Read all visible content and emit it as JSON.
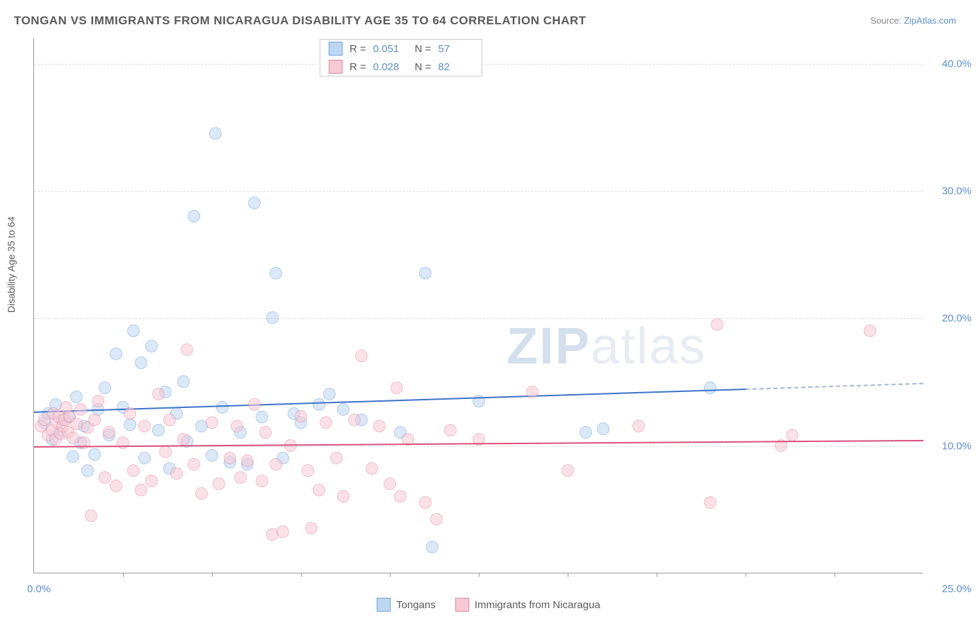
{
  "title": "TONGAN VS IMMIGRANTS FROM NICARAGUA DISABILITY AGE 35 TO 64 CORRELATION CHART",
  "source_prefix": "Source: ",
  "source_link": "ZipAtlas.com",
  "ylabel": "Disability Age 35 to 64",
  "watermark_a": "ZIP",
  "watermark_b": "atlas",
  "chart": {
    "type": "scatter",
    "xlim": [
      0,
      25
    ],
    "ylim": [
      0,
      42
    ],
    "xlim_labels": [
      "0.0%",
      "25.0%"
    ],
    "ytick_values": [
      10,
      20,
      30,
      40
    ],
    "ytick_labels": [
      "10.0%",
      "20.0%",
      "30.0%",
      "40.0%"
    ],
    "xtick_values": [
      2.5,
      5,
      7.5,
      10,
      12.5,
      15,
      17.5,
      20,
      22.5
    ],
    "background_color": "#ffffff",
    "grid_color": "#dddddd",
    "axis_color": "#999999",
    "label_color": "#5a8fd6",
    "marker_radius": 9,
    "marker_opacity": 0.55,
    "series": [
      {
        "name": "Tongans",
        "legend_label": "Tongans",
        "fill": "#bcd7f2",
        "stroke": "#6fa3db",
        "trend_color": "#3b72c8",
        "R": "0.051",
        "N": "57",
        "trend": {
          "x1": 0,
          "y1": 12.7,
          "x2": 20,
          "y2": 14.5,
          "dash_to_x": 25
        },
        "points": [
          [
            0.3,
            11.8
          ],
          [
            0.4,
            12.5
          ],
          [
            0.5,
            10.5
          ],
          [
            0.6,
            13.2
          ],
          [
            0.7,
            11.0
          ],
          [
            0.8,
            12.0
          ],
          [
            1.0,
            12.2
          ],
          [
            1.1,
            9.1
          ],
          [
            1.2,
            13.8
          ],
          [
            1.3,
            10.2
          ],
          [
            1.4,
            11.5
          ],
          [
            1.5,
            8.0
          ],
          [
            1.7,
            9.3
          ],
          [
            1.8,
            12.8
          ],
          [
            2.0,
            14.5
          ],
          [
            2.1,
            10.8
          ],
          [
            2.3,
            17.2
          ],
          [
            2.5,
            13.0
          ],
          [
            2.7,
            11.6
          ],
          [
            2.8,
            19.0
          ],
          [
            3.0,
            16.5
          ],
          [
            3.1,
            9.0
          ],
          [
            3.3,
            17.8
          ],
          [
            3.5,
            11.2
          ],
          [
            3.7,
            14.2
          ],
          [
            3.8,
            8.2
          ],
          [
            4.0,
            12.5
          ],
          [
            4.2,
            15.0
          ],
          [
            4.3,
            10.3
          ],
          [
            4.5,
            28.0
          ],
          [
            4.7,
            11.5
          ],
          [
            5.0,
            9.2
          ],
          [
            5.1,
            34.5
          ],
          [
            5.3,
            13.0
          ],
          [
            5.5,
            8.7
          ],
          [
            5.8,
            11.0
          ],
          [
            6.0,
            8.5
          ],
          [
            6.2,
            29.0
          ],
          [
            6.4,
            12.2
          ],
          [
            6.7,
            20.0
          ],
          [
            6.8,
            23.5
          ],
          [
            7.0,
            9.0
          ],
          [
            7.3,
            12.5
          ],
          [
            7.5,
            11.8
          ],
          [
            8.0,
            13.2
          ],
          [
            8.3,
            14.0
          ],
          [
            8.7,
            12.8
          ],
          [
            9.2,
            12.0
          ],
          [
            10.3,
            11.0
          ],
          [
            11.0,
            23.5
          ],
          [
            11.2,
            2.0
          ],
          [
            12.5,
            13.5
          ],
          [
            15.5,
            11.0
          ],
          [
            16.0,
            11.3
          ],
          [
            19.0,
            14.5
          ]
        ]
      },
      {
        "name": "Immigrants from Nicaragua",
        "legend_label": "Immigrants from Nicaragua",
        "fill": "#f7c9d4",
        "stroke": "#e48aa1",
        "trend_color": "#d94f7a",
        "R": "0.028",
        "N": "82",
        "trend": {
          "x1": 0,
          "y1": 10.0,
          "x2": 25,
          "y2": 10.5
        },
        "points": [
          [
            0.2,
            11.5
          ],
          [
            0.3,
            12.0
          ],
          [
            0.4,
            10.8
          ],
          [
            0.5,
            11.2
          ],
          [
            0.55,
            12.5
          ],
          [
            0.6,
            10.5
          ],
          [
            0.65,
            11.8
          ],
          [
            0.7,
            12.2
          ],
          [
            0.75,
            10.9
          ],
          [
            0.8,
            11.5
          ],
          [
            0.85,
            12.0
          ],
          [
            0.9,
            13.0
          ],
          [
            0.95,
            11.0
          ],
          [
            1.0,
            12.3
          ],
          [
            1.1,
            10.6
          ],
          [
            1.2,
            11.7
          ],
          [
            1.3,
            12.8
          ],
          [
            1.4,
            10.2
          ],
          [
            1.5,
            11.4
          ],
          [
            1.6,
            4.5
          ],
          [
            1.7,
            12.0
          ],
          [
            1.8,
            13.5
          ],
          [
            2.0,
            7.5
          ],
          [
            2.1,
            11.0
          ],
          [
            2.3,
            6.8
          ],
          [
            2.5,
            10.2
          ],
          [
            2.7,
            12.5
          ],
          [
            2.8,
            8.0
          ],
          [
            3.0,
            6.5
          ],
          [
            3.1,
            11.5
          ],
          [
            3.3,
            7.2
          ],
          [
            3.5,
            14.0
          ],
          [
            3.7,
            9.5
          ],
          [
            3.8,
            12.0
          ],
          [
            4.0,
            7.8
          ],
          [
            4.2,
            10.5
          ],
          [
            4.3,
            17.5
          ],
          [
            4.5,
            8.5
          ],
          [
            4.7,
            6.2
          ],
          [
            5.0,
            11.8
          ],
          [
            5.2,
            7.0
          ],
          [
            5.5,
            9.0
          ],
          [
            5.7,
            11.5
          ],
          [
            5.8,
            7.5
          ],
          [
            6.0,
            8.8
          ],
          [
            6.2,
            13.2
          ],
          [
            6.4,
            7.2
          ],
          [
            6.5,
            11.0
          ],
          [
            6.7,
            3.0
          ],
          [
            6.8,
            8.5
          ],
          [
            7.0,
            3.2
          ],
          [
            7.2,
            10.0
          ],
          [
            7.5,
            12.3
          ],
          [
            7.7,
            8.0
          ],
          [
            7.8,
            3.5
          ],
          [
            8.0,
            6.5
          ],
          [
            8.2,
            11.8
          ],
          [
            8.5,
            9.0
          ],
          [
            8.7,
            6.0
          ],
          [
            9.0,
            12.0
          ],
          [
            9.2,
            17.0
          ],
          [
            9.5,
            8.2
          ],
          [
            9.7,
            11.5
          ],
          [
            10.0,
            7.0
          ],
          [
            10.2,
            14.5
          ],
          [
            10.3,
            6.0
          ],
          [
            10.5,
            10.5
          ],
          [
            11.0,
            5.5
          ],
          [
            11.3,
            4.2
          ],
          [
            11.7,
            11.2
          ],
          [
            12.5,
            10.5
          ],
          [
            14.0,
            14.2
          ],
          [
            15.0,
            8.0
          ],
          [
            17.0,
            11.5
          ],
          [
            19.0,
            5.5
          ],
          [
            19.2,
            19.5
          ],
          [
            21.0,
            10.0
          ],
          [
            21.3,
            10.8
          ],
          [
            23.5,
            19.0
          ]
        ]
      }
    ]
  }
}
